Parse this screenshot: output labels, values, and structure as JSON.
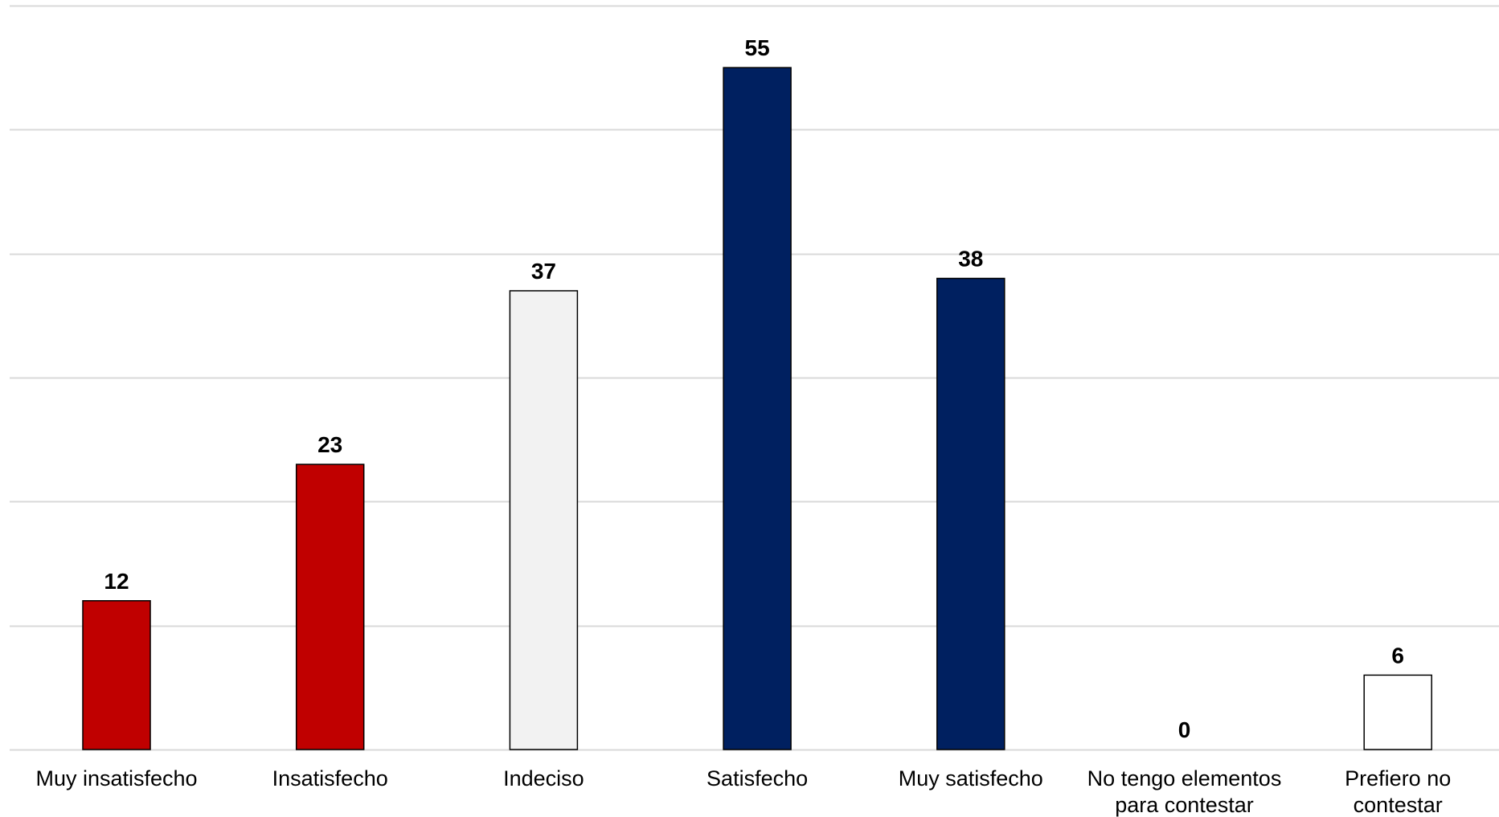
{
  "chart_data": {
    "type": "bar",
    "categories": [
      [
        "Muy insatisfecho"
      ],
      [
        "Insatisfecho"
      ],
      [
        "Indeciso"
      ],
      [
        "Satisfecho"
      ],
      [
        "Muy satisfecho"
      ],
      [
        "No tengo elementos",
        "para contestar"
      ],
      [
        "Prefiero no",
        "contestar"
      ]
    ],
    "values": [
      12,
      23,
      37,
      55,
      38,
      0,
      6
    ],
    "colors": [
      "#c00000",
      "#c00000",
      "#f2f2f2",
      "#002060",
      "#002060",
      "#ffffff",
      "#ffffff"
    ],
    "ylim": [
      0,
      60
    ],
    "grid": true,
    "gridline_color": "#d9d9d9",
    "bar_outline_color": "#000000"
  }
}
